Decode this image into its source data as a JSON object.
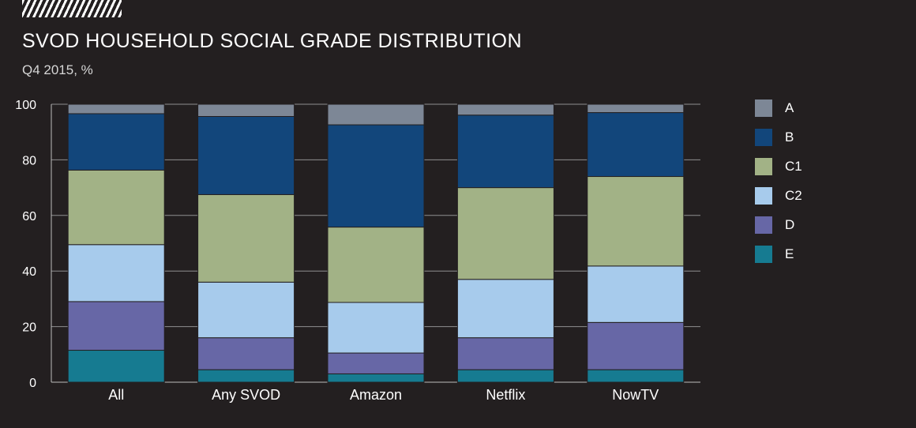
{
  "header": {
    "title": "SVOD HOUSEHOLD SOCIAL GRADE DISTRIBUTION",
    "subtitle": "Q4 2015, %"
  },
  "chart_data": {
    "type": "bar",
    "stacked": true,
    "title": "SVOD HOUSEHOLD SOCIAL GRADE DISTRIBUTION",
    "subtitle": "Q4 2015, %",
    "xlabel": "",
    "ylabel": "",
    "ylim": [
      0,
      100
    ],
    "yticks": [
      0,
      20,
      40,
      60,
      80,
      100
    ],
    "legend_position": "right",
    "categories": [
      "All",
      "Any SVOD",
      "Amazon",
      "Netflix",
      "NowTV"
    ],
    "series": [
      {
        "name": "E",
        "color": "#167b91",
        "values": [
          11.5,
          4.5,
          3,
          4.5,
          4.5
        ]
      },
      {
        "name": "D",
        "color": "#6767a6",
        "values": [
          17.5,
          11.5,
          7.5,
          11.5,
          17
        ]
      },
      {
        "name": "C2",
        "color": "#a7cbec",
        "values": [
          20.5,
          20,
          18.2,
          21,
          20.3
        ]
      },
      {
        "name": "C1",
        "color": "#a2b286",
        "values": [
          26.8,
          31.5,
          27.1,
          33,
          32.2
        ]
      },
      {
        "name": "B",
        "color": "#12467b",
        "values": [
          20.3,
          28.1,
          36.8,
          26.1,
          23
        ]
      },
      {
        "name": "A",
        "color": "#7d8796",
        "values": [
          3.4,
          4.4,
          7.4,
          3.9,
          3
        ]
      }
    ]
  }
}
